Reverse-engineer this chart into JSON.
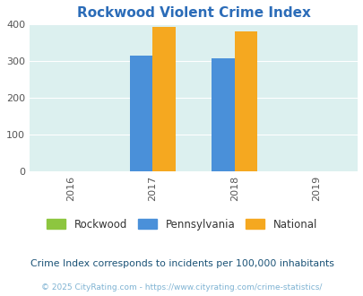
{
  "title": "Rockwood Violent Crime Index",
  "title_color": "#2B6CB8",
  "years": [
    2016,
    2017,
    2018,
    2019
  ],
  "bar_years": [
    2017,
    2018
  ],
  "rockwood": [
    0,
    0
  ],
  "pennsylvania": [
    315,
    307
  ],
  "national": [
    393,
    381
  ],
  "colors": {
    "rockwood": "#8DC63F",
    "pennsylvania": "#4A90D9",
    "national": "#F5A820"
  },
  "ylim": [
    0,
    400
  ],
  "yticks": [
    0,
    100,
    200,
    300,
    400
  ],
  "xlim": [
    2015.5,
    2019.5
  ],
  "background_color": "#DCF0EF",
  "grid_color": "#FFFFFF",
  "legend_labels": [
    "Rockwood",
    "Pennsylvania",
    "National"
  ],
  "footnote1": "Crime Index corresponds to incidents per 100,000 inhabitants",
  "footnote2": "© 2025 CityRating.com - https://www.cityrating.com/crime-statistics/",
  "bar_width": 0.28
}
